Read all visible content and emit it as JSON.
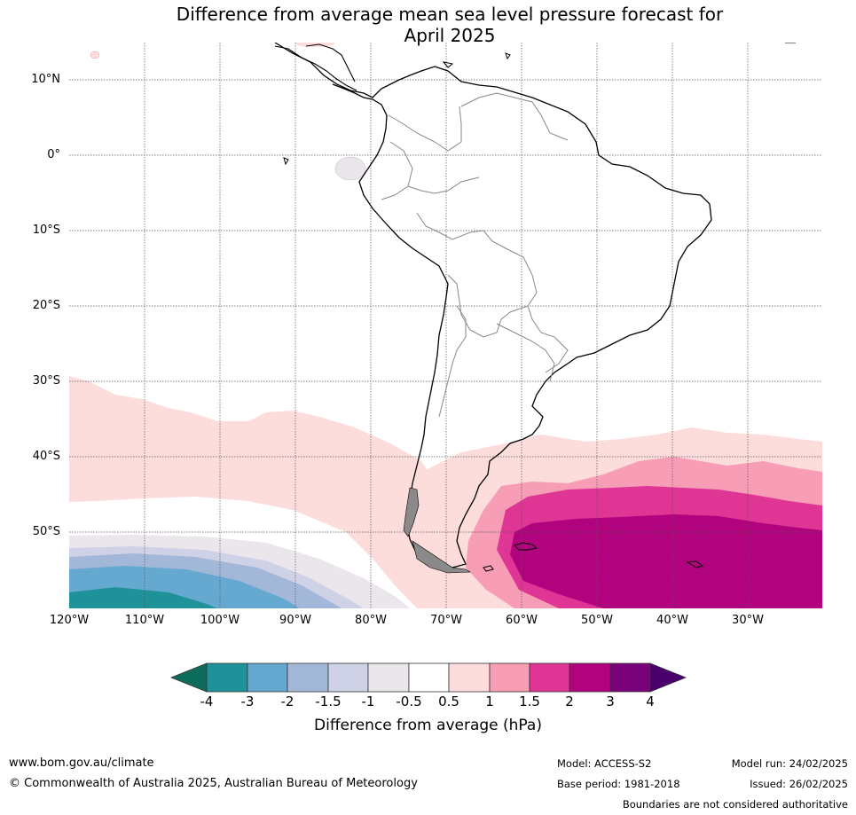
{
  "title": {
    "line1": "Difference from average mean sea level pressure forecast for",
    "line2": "April 2025"
  },
  "map": {
    "lat_labels": [
      "10°N",
      "0°",
      "10°S",
      "20°S",
      "30°S",
      "40°S",
      "50°S"
    ],
    "lon_labels": [
      "120°W",
      "110°W",
      "100°W",
      "90°W",
      "80°W",
      "70°W",
      "60°W",
      "50°W",
      "40°W",
      "30°W"
    ],
    "extent": {
      "lon_min": -120,
      "lon_max": -20,
      "lat_min": -60,
      "lat_max": 15
    }
  },
  "legend": {
    "title": "Difference from average (hPa)",
    "tick_labels": [
      "-4",
      "-3",
      "-2",
      "-1.5",
      "-1",
      "-0.5",
      "0.5",
      "1",
      "1.5",
      "2",
      "3",
      "4"
    ],
    "colors": {
      "below_min": "#0d6d5d",
      "lt_-3": "#1f9299",
      "lt_-2": "#66a9d0",
      "lt_-1.5": "#a3b8d9",
      "lt_-1": "#cfd1e6",
      "lt_-0.5": "#ebe6ec",
      "neutral": "#ffffff",
      "gt_0.5": "#fddcdc",
      "gt_1": "#f89db6",
      "gt_1.5": "#df3594",
      "gt_2": "#b0037d",
      "gt_3": "#7a0278",
      "above_max": "#4a006c"
    }
  },
  "footer": {
    "url": "www.bom.gov.au/climate",
    "copyright": "© Commonwealth of Australia 2025, Australian Bureau of Meteorology",
    "model": "Model: ACCESS-S2",
    "base_period": "Base period: 1981-2018",
    "model_run": "Model run: 24/02/2025",
    "issued": "Issued: 26/02/2025",
    "disclaimer": "Boundaries are not considered authoritative"
  }
}
